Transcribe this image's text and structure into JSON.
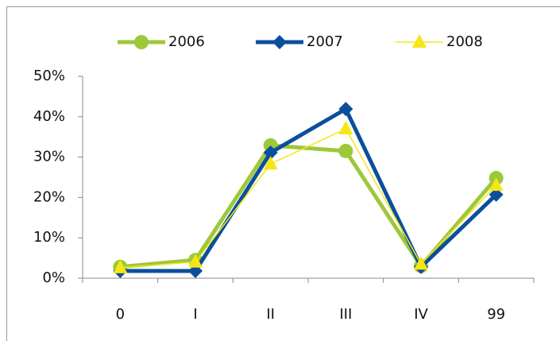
{
  "chart_data": {
    "type": "line",
    "categories": [
      "0",
      "I",
      "II",
      "III",
      "IV",
      "99"
    ],
    "series": [
      {
        "name": "2006",
        "color": "#9dc83a",
        "marker": "circle",
        "line_width": 5,
        "values": [
          2.8,
          4.5,
          32.9,
          31.5,
          3,
          24.8
        ]
      },
      {
        "name": "2007",
        "color": "#0b4f9c",
        "marker": "diamond",
        "line_width": 5,
        "values": [
          1.8,
          1.8,
          31.1,
          41.9,
          2.8,
          20.7
        ]
      },
      {
        "name": "2008",
        "color": "#f5e614",
        "marker": "triangle",
        "line_width": 1.5,
        "values": [
          2.6,
          4,
          28.3,
          37,
          3.5,
          23
        ]
      }
    ],
    "ylim": [
      0,
      50
    ],
    "yticks": [
      {
        "value": 0,
        "label": "0%"
      },
      {
        "value": 10,
        "label": "10%"
      },
      {
        "value": 20,
        "label": "20%"
      },
      {
        "value": 30,
        "label": "30%"
      },
      {
        "value": 40,
        "label": "40%"
      },
      {
        "value": 50,
        "label": "50%"
      }
    ],
    "grid": false,
    "legend": "top"
  }
}
